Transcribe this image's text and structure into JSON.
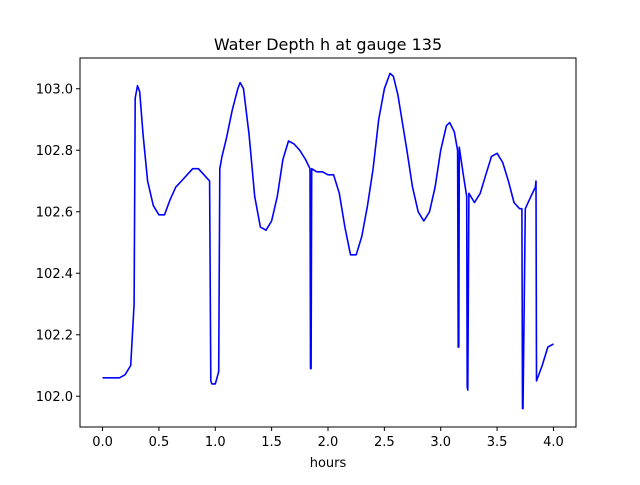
{
  "chart_data": {
    "type": "line",
    "title": "Water Depth h at gauge 135",
    "xlabel": "hours",
    "ylabel": "",
    "xlim": [
      -0.2,
      4.2
    ],
    "ylim": [
      101.9,
      103.1
    ],
    "x_ticks": [
      0.0,
      0.5,
      1.0,
      1.5,
      2.0,
      2.5,
      3.0,
      3.5,
      4.0
    ],
    "x_tick_labels": [
      "0.0",
      "0.5",
      "1.0",
      "1.5",
      "2.0",
      "2.5",
      "3.0",
      "3.5",
      "4.0"
    ],
    "y_ticks": [
      102.0,
      102.2,
      102.4,
      102.6,
      102.8,
      103.0
    ],
    "y_tick_labels": [
      "102.0",
      "102.2",
      "102.4",
      "102.6",
      "102.8",
      "103.0"
    ],
    "grid": false,
    "legend": "none",
    "series": [
      {
        "color": "#0000ff",
        "x": [
          0.0,
          0.1,
          0.15,
          0.2,
          0.25,
          0.28,
          0.29,
          0.31,
          0.33,
          0.36,
          0.4,
          0.45,
          0.5,
          0.55,
          0.6,
          0.65,
          0.7,
          0.75,
          0.8,
          0.85,
          0.9,
          0.95,
          0.96,
          0.97,
          1.0,
          1.03,
          1.04,
          1.06,
          1.1,
          1.15,
          1.2,
          1.22,
          1.25,
          1.3,
          1.35,
          1.4,
          1.45,
          1.5,
          1.55,
          1.6,
          1.65,
          1.7,
          1.75,
          1.8,
          1.84,
          1.845,
          1.85,
          1.855,
          1.9,
          1.95,
          2.0,
          2.05,
          2.1,
          2.15,
          2.2,
          2.25,
          2.3,
          2.35,
          2.4,
          2.45,
          2.5,
          2.55,
          2.58,
          2.62,
          2.7,
          2.75,
          2.8,
          2.85,
          2.9,
          2.95,
          3.0,
          3.05,
          3.08,
          3.12,
          3.15,
          3.155,
          3.16,
          3.165,
          3.2,
          3.23,
          3.235,
          3.24,
          3.25,
          3.3,
          3.35,
          3.4,
          3.45,
          3.5,
          3.55,
          3.6,
          3.65,
          3.7,
          3.72,
          3.725,
          3.73,
          3.75,
          3.8,
          3.84,
          3.845,
          3.85,
          3.9,
          3.95,
          4.0
        ],
        "y": [
          102.06,
          102.06,
          102.06,
          102.07,
          102.1,
          102.3,
          102.97,
          103.01,
          102.99,
          102.85,
          102.7,
          102.62,
          102.59,
          102.59,
          102.64,
          102.68,
          102.7,
          102.72,
          102.74,
          102.74,
          102.72,
          102.7,
          102.05,
          102.04,
          102.04,
          102.08,
          102.74,
          102.78,
          102.84,
          102.93,
          103.0,
          103.02,
          103.0,
          102.85,
          102.65,
          102.55,
          102.54,
          102.57,
          102.65,
          102.77,
          102.83,
          102.82,
          102.8,
          102.77,
          102.74,
          102.09,
          102.09,
          102.74,
          102.73,
          102.73,
          102.72,
          102.72,
          102.66,
          102.55,
          102.46,
          102.46,
          102.52,
          102.62,
          102.74,
          102.9,
          103.0,
          103.05,
          103.04,
          102.98,
          102.8,
          102.68,
          102.6,
          102.57,
          102.6,
          102.68,
          102.8,
          102.88,
          102.89,
          102.86,
          102.8,
          102.16,
          102.16,
          102.81,
          102.72,
          102.65,
          102.03,
          102.02,
          102.66,
          102.63,
          102.66,
          102.72,
          102.78,
          102.79,
          102.76,
          102.7,
          102.63,
          102.61,
          102.61,
          101.96,
          101.96,
          102.61,
          102.65,
          102.68,
          102.7,
          102.05,
          102.1,
          102.16,
          102.17
        ]
      }
    ]
  }
}
